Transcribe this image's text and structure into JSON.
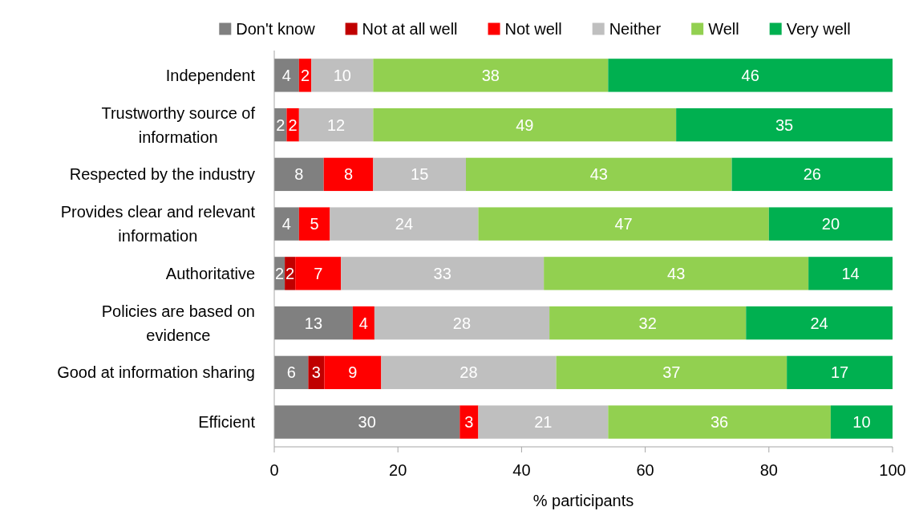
{
  "chart_data": {
    "type": "bar",
    "orientation": "horizontal",
    "stacked": true,
    "categories": [
      "Independent",
      "Trustworthy source of information",
      "Respected by the industry",
      "Provides clear and relevant information",
      "Authoritative",
      "Policies are based on evidence",
      "Good at information sharing",
      "Efficient"
    ],
    "series": [
      {
        "name": "Don't know",
        "color": "#808080",
        "values": [
          4,
          2,
          8,
          4,
          1.7,
          12.7,
          5.5,
          30
        ],
        "value_labels": [
          "4",
          "2",
          "8",
          "4",
          "2",
          "13",
          "6",
          "30"
        ]
      },
      {
        "name": "Not at all well",
        "color": "#c00000",
        "values": [
          null,
          null,
          null,
          null,
          1.7,
          null,
          2.6,
          null
        ],
        "value_labels": [
          null,
          null,
          null,
          null,
          "2",
          null,
          "3",
          null
        ]
      },
      {
        "name": "Not well",
        "color": "#ff0000",
        "values": [
          2,
          2,
          8,
          5,
          7.4,
          3.5,
          9.2,
          3
        ],
        "value_labels": [
          "2",
          "2",
          "8",
          "5",
          "7",
          "4",
          "9",
          "3"
        ]
      },
      {
        "name": "Neither",
        "color": "#bfbfbf",
        "values": [
          10,
          12,
          15,
          24,
          32.8,
          28.3,
          28.3,
          21
        ],
        "value_labels": [
          "10",
          "12",
          "15",
          "24",
          "33",
          "28",
          "28",
          "21"
        ]
      },
      {
        "name": "Well",
        "color": "#92d050",
        "values": [
          38,
          49,
          43,
          47,
          42.8,
          31.8,
          37.3,
          36
        ],
        "value_labels": [
          "38",
          "49",
          "43",
          "47",
          "43",
          "32",
          "37",
          "36"
        ]
      },
      {
        "name": "Very well",
        "color": "#00b050",
        "values": [
          46,
          35,
          26,
          20,
          13.6,
          23.7,
          17.1,
          10
        ],
        "value_labels": [
          "46",
          "35",
          "26",
          "20",
          "14",
          "24",
          "17",
          "10"
        ]
      }
    ],
    "xlim": [
      0,
      100
    ],
    "xticks": [
      0,
      20,
      40,
      60,
      80,
      100
    ],
    "xlabel": "% participants",
    "legend": "top"
  }
}
